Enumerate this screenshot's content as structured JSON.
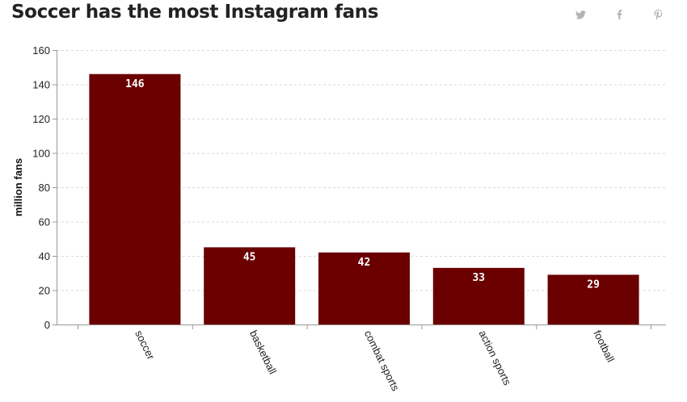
{
  "title": "Soccer has the most Instagram fans",
  "share": {
    "twitter_icon": "twitter-icon",
    "facebook_icon": "facebook-icon",
    "pinterest_icon": "pinterest-icon"
  },
  "colors": {
    "bar": "#6b0000",
    "grid": "#d9d9d9",
    "axis": "#999999",
    "icon": "#b3b3b3"
  },
  "chart_data": {
    "type": "bar",
    "title": "Soccer has the most Instagram fans",
    "xlabel": "",
    "ylabel": "million fans",
    "categories": [
      "soccer",
      "basketball",
      "combat sports",
      "action sports",
      "football"
    ],
    "values": [
      146,
      45,
      42,
      33,
      29
    ],
    "value_labels": [
      "146",
      "45",
      "42",
      "33",
      "29"
    ],
    "ylim": [
      0,
      160
    ],
    "yticks": [
      0,
      20,
      40,
      60,
      80,
      100,
      120,
      140,
      160
    ],
    "grid": true,
    "legend": "none"
  }
}
